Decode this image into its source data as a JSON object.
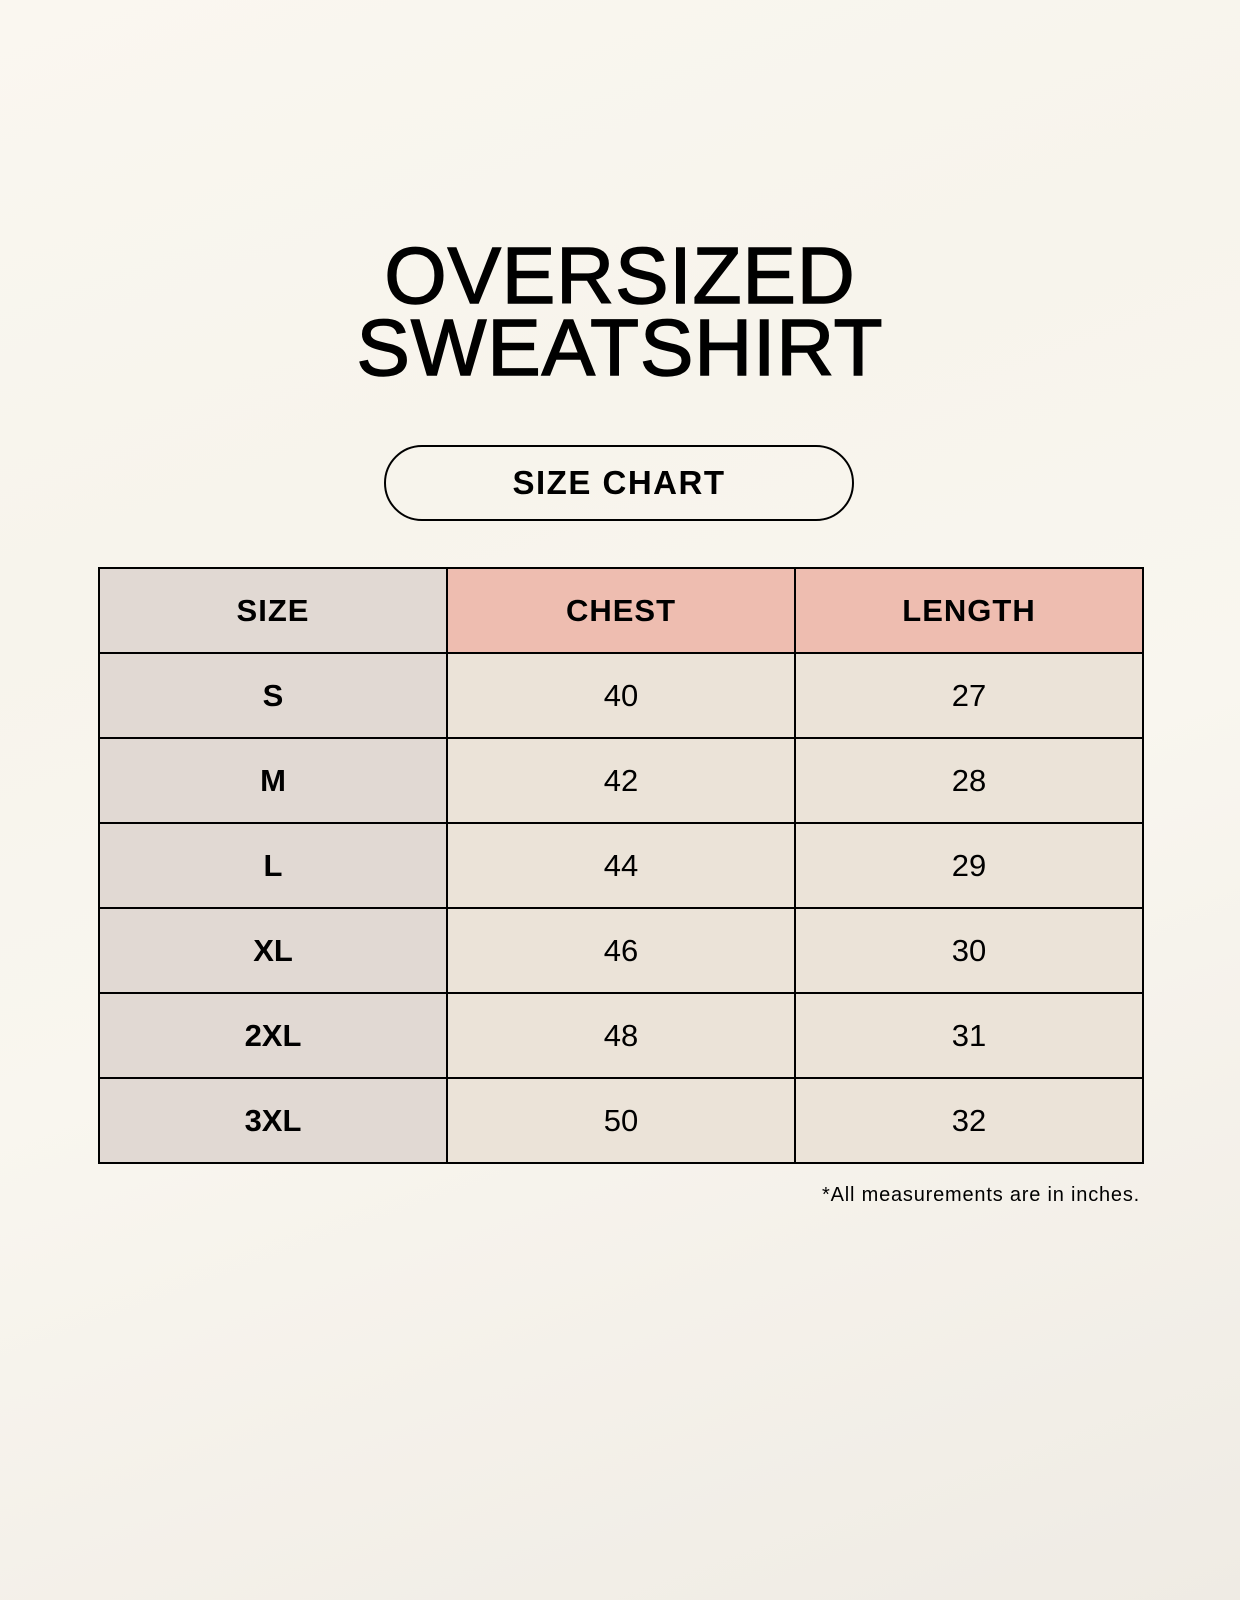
{
  "title": {
    "line1": "OVERSIZED",
    "line2": "SWEATSHIRT"
  },
  "subtitle": "SIZE CHART",
  "table": {
    "headers": [
      "SIZE",
      "CHEST",
      "LENGTH"
    ],
    "rows": [
      [
        "S",
        "40",
        "27"
      ],
      [
        "M",
        "42",
        "28"
      ],
      [
        "L",
        "44",
        "29"
      ],
      [
        "XL",
        "46",
        "30"
      ],
      [
        "2XL",
        "48",
        "31"
      ],
      [
        "3XL",
        "50",
        "32"
      ]
    ]
  },
  "footnote": "*All measurements are in inches.",
  "colors": {
    "header_pink": "#eebdb0",
    "size_column": "#e1d9d3",
    "value_cells": "#ebe3d8"
  }
}
